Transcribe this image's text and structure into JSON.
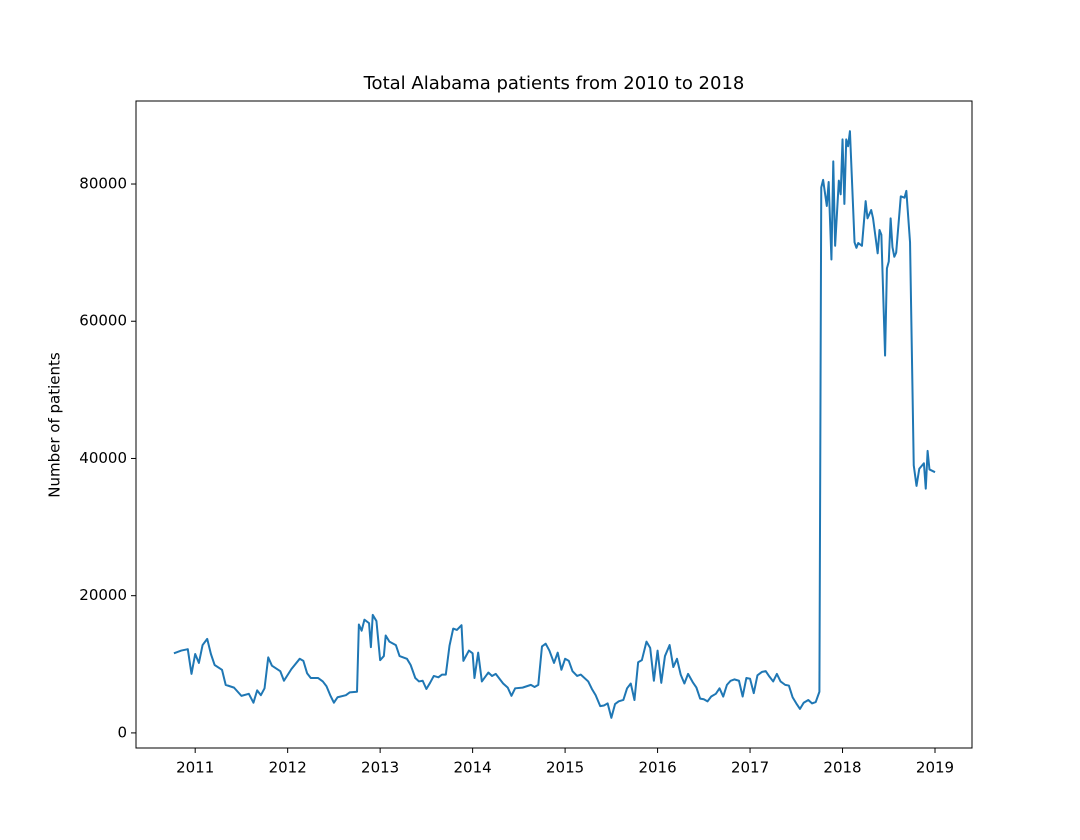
{
  "chart_data": {
    "type": "line",
    "title": "Total Alabama patients from 2010 to 2018",
    "y_label": "Number of patients",
    "xlim": [
      2010.36,
      2019.4
    ],
    "ylim": [
      -2200,
      92100
    ],
    "xticks": [
      2011,
      2012,
      2013,
      2014,
      2015,
      2016,
      2017,
      2018,
      2019
    ],
    "yticks": [
      0,
      20000,
      40000,
      60000,
      80000
    ],
    "series": [
      {
        "color": "#1f77b4",
        "x": [
          2010.77,
          2010.85,
          2010.92,
          2010.96,
          2011.0,
          2011.04,
          2011.08,
          2011.13,
          2011.17,
          2011.21,
          2011.29,
          2011.33,
          2011.42,
          2011.5,
          2011.58,
          2011.63,
          2011.67,
          2011.71,
          2011.75,
          2011.79,
          2011.83,
          2011.92,
          2011.96,
          2012.04,
          2012.13,
          2012.17,
          2012.21,
          2012.25,
          2012.33,
          2012.38,
          2012.42,
          2012.46,
          2012.5,
          2012.54,
          2012.63,
          2012.67,
          2012.75,
          2012.77,
          2012.8,
          2012.83,
          2012.88,
          2012.9,
          2012.92,
          2012.96,
          2013.0,
          2013.04,
          2013.06,
          2013.1,
          2013.17,
          2013.21,
          2013.29,
          2013.33,
          2013.38,
          2013.42,
          2013.46,
          2013.5,
          2013.54,
          2013.58,
          2013.63,
          2013.67,
          2013.71,
          2013.75,
          2013.79,
          2013.83,
          2013.88,
          2013.9,
          2013.96,
          2014.0,
          2014.02,
          2014.06,
          2014.1,
          2014.17,
          2014.21,
          2014.25,
          2014.33,
          2014.38,
          2014.42,
          2014.46,
          2014.54,
          2014.63,
          2014.67,
          2014.71,
          2014.75,
          2014.79,
          2014.83,
          2014.88,
          2014.92,
          2014.96,
          2015.0,
          2015.04,
          2015.08,
          2015.13,
          2015.17,
          2015.25,
          2015.29,
          2015.33,
          2015.38,
          2015.42,
          2015.46,
          2015.5,
          2015.54,
          2015.58,
          2015.63,
          2015.67,
          2015.71,
          2015.75,
          2015.79,
          2015.83,
          2015.88,
          2015.92,
          2015.96,
          2016.0,
          2016.04,
          2016.08,
          2016.13,
          2016.17,
          2016.21,
          2016.25,
          2016.29,
          2016.33,
          2016.38,
          2016.42,
          2016.46,
          2016.5,
          2016.54,
          2016.58,
          2016.63,
          2016.67,
          2016.71,
          2016.75,
          2016.79,
          2016.83,
          2016.88,
          2016.92,
          2016.96,
          2017.0,
          2017.04,
          2017.08,
          2017.13,
          2017.17,
          2017.21,
          2017.25,
          2017.29,
          2017.33,
          2017.38,
          2017.42,
          2017.46,
          2017.5,
          2017.54,
          2017.58,
          2017.63,
          2017.67,
          2017.71,
          2017.75,
          2017.77,
          2017.79,
          2017.83,
          2017.85,
          2017.88,
          2017.9,
          2017.92,
          2017.96,
          2017.98,
          2018.0,
          2018.02,
          2018.04,
          2018.06,
          2018.08,
          2018.13,
          2018.15,
          2018.17,
          2018.21,
          2018.25,
          2018.27,
          2018.31,
          2018.33,
          2018.38,
          2018.4,
          2018.42,
          2018.46,
          2018.48,
          2018.5,
          2018.52,
          2018.54,
          2018.56,
          2018.58,
          2018.63,
          2018.67,
          2018.69,
          2018.73,
          2018.77,
          2018.8,
          2018.83,
          2018.88,
          2018.9,
          2018.92,
          2018.94,
          2019.0
        ],
        "values": [
          11600,
          12000,
          12200,
          8600,
          11500,
          10200,
          12800,
          13700,
          11500,
          9900,
          9200,
          7000,
          6600,
          5400,
          5700,
          4400,
          6200,
          5500,
          6500,
          11000,
          9800,
          9000,
          7600,
          9300,
          10800,
          10500,
          8700,
          8000,
          8000,
          7500,
          6800,
          5500,
          4400,
          5200,
          5500,
          5900,
          6000,
          15800,
          14900,
          16500,
          16000,
          12500,
          17200,
          16300,
          10600,
          11200,
          14200,
          13300,
          12800,
          11200,
          10800,
          9900,
          8000,
          7500,
          7600,
          6400,
          7300,
          8300,
          8100,
          8500,
          8500,
          12700,
          15200,
          15000,
          15700,
          10500,
          12000,
          11600,
          8000,
          11700,
          7500,
          8800,
          8300,
          8600,
          7200,
          6600,
          5400,
          6500,
          6600,
          7000,
          6700,
          7000,
          12600,
          13000,
          12000,
          10200,
          11700,
          9200,
          10800,
          10500,
          9000,
          8300,
          8500,
          7500,
          6400,
          5500,
          3900,
          4000,
          4300,
          2200,
          4200,
          4600,
          4800,
          6500,
          7200,
          4800,
          10300,
          10600,
          13300,
          12400,
          7600,
          12000,
          7300,
          11200,
          12800,
          9600,
          10800,
          8500,
          7200,
          8600,
          7400,
          6600,
          5000,
          4900,
          4600,
          5300,
          5700,
          6500,
          5300,
          7000,
          7600,
          7800,
          7600,
          5300,
          8000,
          7900,
          5800,
          8400,
          8900,
          9000,
          8200,
          7500,
          8600,
          7500,
          7000,
          6900,
          5200,
          4300,
          3500,
          4400,
          4800,
          4300,
          4500,
          6000,
          79500,
          80600,
          76800,
          80300,
          69000,
          83300,
          71000,
          80500,
          78500,
          86500,
          77100,
          86500,
          85500,
          87700,
          71500,
          70700,
          71400,
          71000,
          77500,
          75000,
          76200,
          75000,
          69900,
          73300,
          72600,
          55000,
          67700,
          68700,
          75000,
          70800,
          69400,
          70000,
          78200,
          78000,
          79000,
          71500,
          39000,
          36000,
          38500,
          39300,
          35600,
          41100,
          38400,
          38000
        ]
      }
    ]
  }
}
